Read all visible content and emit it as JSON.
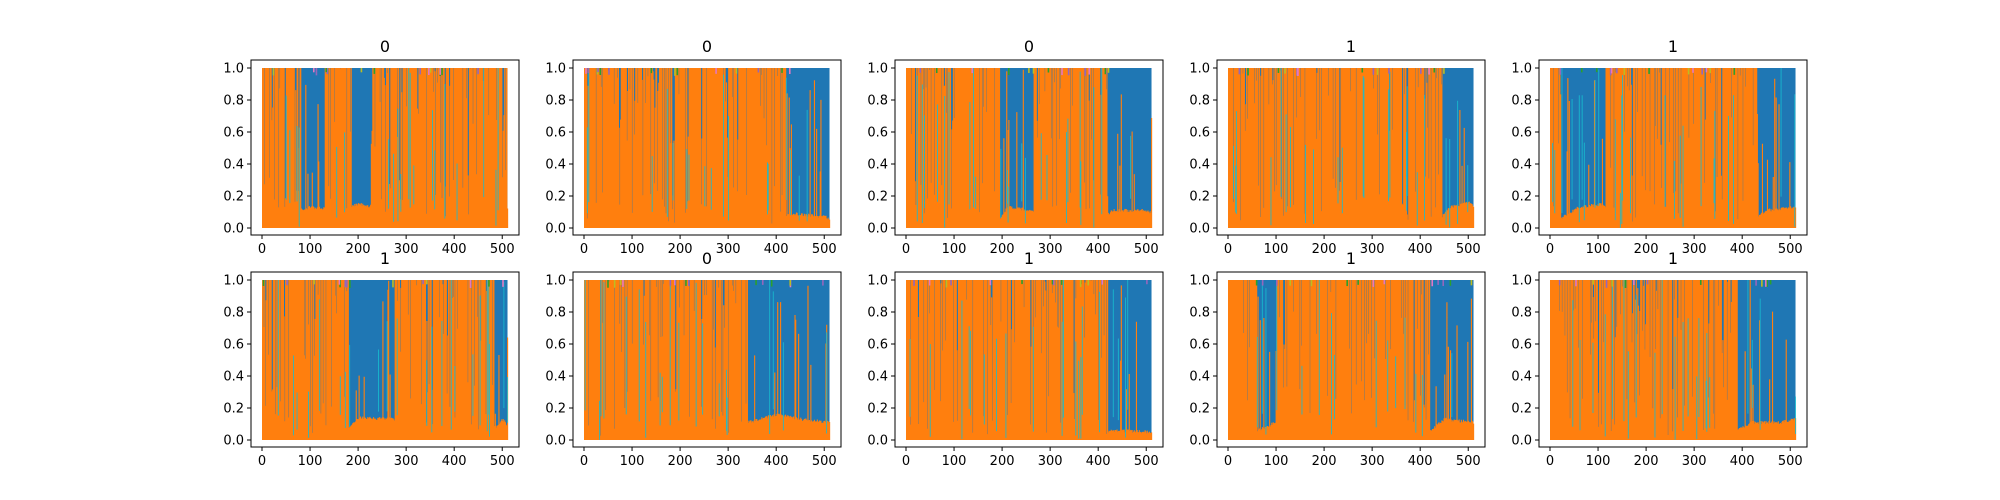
{
  "figure": {
    "rows": 2,
    "cols": 5
  },
  "colors": {
    "blue": "#1f77b4",
    "orange": "#ff7f0e",
    "cyan": "#17becf",
    "green": "#2ca02c",
    "purple": "#9467bd",
    "pink": "#e377c2",
    "olive": "#bcbd22"
  },
  "chart_data": [
    {
      "type": "area",
      "title": "0",
      "xlim": [
        0,
        512
      ],
      "ylim": [
        0,
        1
      ],
      "xticks": [
        0,
        100,
        200,
        300,
        400,
        500
      ],
      "yticks": [
        "0.0",
        "0.2",
        "0.4",
        "0.6",
        "0.8",
        "1.0"
      ],
      "grid": false,
      "legend": "none",
      "blue_regions": [
        [
          80,
          130
        ],
        [
          185,
          225
        ]
      ],
      "orange_baseline": [
        [
          0,
          0.03
        ],
        [
          100,
          0.12
        ],
        [
          160,
          0.1
        ],
        [
          200,
          0.14
        ],
        [
          240,
          0.12
        ],
        [
          300,
          0.02
        ],
        [
          450,
          0.04
        ],
        [
          500,
          0.12
        ],
        [
          510,
          0.1
        ]
      ]
    },
    {
      "type": "area",
      "title": "0",
      "xlim": [
        0,
        512
      ],
      "ylim": [
        0,
        1
      ],
      "xticks": [
        0,
        100,
        200,
        300,
        400,
        500
      ],
      "yticks": [
        "0.0",
        "0.2",
        "0.4",
        "0.6",
        "0.8",
        "1.0"
      ],
      "grid": false,
      "legend": "none",
      "blue_regions": [
        [
          420,
          510
        ]
      ],
      "orange_baseline": [
        [
          0,
          0.02
        ],
        [
          200,
          0.02
        ],
        [
          400,
          0.02
        ],
        [
          430,
          0.08
        ],
        [
          500,
          0.06
        ],
        [
          510,
          0.05
        ]
      ]
    },
    {
      "type": "area",
      "title": "0",
      "xlim": [
        0,
        512
      ],
      "ylim": [
        0,
        1
      ],
      "xticks": [
        0,
        100,
        200,
        300,
        400,
        500
      ],
      "yticks": [
        "0.0",
        "0.2",
        "0.4",
        "0.6",
        "0.8",
        "1.0"
      ],
      "grid": false,
      "legend": "none",
      "blue_regions": [
        [
          195,
          265
        ],
        [
          420,
          510
        ]
      ],
      "orange_baseline": [
        [
          0,
          0.02
        ],
        [
          190,
          0.03
        ],
        [
          210,
          0.12
        ],
        [
          260,
          0.1
        ],
        [
          400,
          0.03
        ],
        [
          430,
          0.1
        ],
        [
          500,
          0.1
        ],
        [
          510,
          0.08
        ]
      ]
    },
    {
      "type": "area",
      "title": "1",
      "xlim": [
        0,
        512
      ],
      "ylim": [
        0,
        1
      ],
      "xticks": [
        0,
        100,
        200,
        300,
        400,
        500
      ],
      "yticks": [
        "0.0",
        "0.2",
        "0.4",
        "0.6",
        "0.8",
        "1.0"
      ],
      "grid": false,
      "legend": "none",
      "blue_regions": [
        [
          445,
          510
        ]
      ],
      "orange_baseline": [
        [
          0,
          0.02
        ],
        [
          200,
          0.03
        ],
        [
          440,
          0.04
        ],
        [
          460,
          0.12
        ],
        [
          500,
          0.15
        ],
        [
          510,
          0.12
        ]
      ]
    },
    {
      "type": "area",
      "title": "1",
      "xlim": [
        0,
        512
      ],
      "ylim": [
        0,
        1
      ],
      "xticks": [
        0,
        100,
        200,
        300,
        400,
        500
      ],
      "yticks": [
        "0.0",
        "0.2",
        "0.4",
        "0.6",
        "0.8",
        "1.0"
      ],
      "grid": false,
      "legend": "none",
      "blue_regions": [
        [
          20,
          115
        ],
        [
          430,
          510
        ]
      ],
      "orange_baseline": [
        [
          0,
          0.02
        ],
        [
          20,
          0.05
        ],
        [
          60,
          0.12
        ],
        [
          110,
          0.14
        ],
        [
          150,
          0.04
        ],
        [
          420,
          0.03
        ],
        [
          450,
          0.1
        ],
        [
          510,
          0.12
        ]
      ]
    },
    {
      "type": "area",
      "title": "1",
      "xlim": [
        0,
        512
      ],
      "ylim": [
        0,
        1
      ],
      "xticks": [
        0,
        100,
        200,
        300,
        400,
        500
      ],
      "yticks": [
        "0.0",
        "0.2",
        "0.4",
        "0.6",
        "0.8",
        "1.0"
      ],
      "grid": false,
      "legend": "none",
      "blue_regions": [
        [
          180,
          275
        ],
        [
          485,
          510
        ]
      ],
      "orange_baseline": [
        [
          0,
          0.03
        ],
        [
          170,
          0.04
        ],
        [
          200,
          0.13
        ],
        [
          280,
          0.12
        ],
        [
          300,
          0.1
        ],
        [
          480,
          0.05
        ],
        [
          500,
          0.12
        ],
        [
          510,
          0.08
        ]
      ]
    },
    {
      "type": "area",
      "title": "0",
      "xlim": [
        0,
        512
      ],
      "ylim": [
        0,
        1
      ],
      "xticks": [
        0,
        100,
        200,
        300,
        400,
        500
      ],
      "yticks": [
        "0.0",
        "0.2",
        "0.4",
        "0.6",
        "0.8",
        "1.0"
      ],
      "grid": false,
      "legend": "none",
      "blue_regions": [
        [
          340,
          510
        ]
      ],
      "orange_baseline": [
        [
          0,
          0.02
        ],
        [
          300,
          0.02
        ],
        [
          340,
          0.1
        ],
        [
          400,
          0.15
        ],
        [
          450,
          0.12
        ],
        [
          510,
          0.1
        ]
      ]
    },
    {
      "type": "area",
      "title": "1",
      "xlim": [
        0,
        512
      ],
      "ylim": [
        0,
        1
      ],
      "xticks": [
        0,
        100,
        200,
        300,
        400,
        500
      ],
      "yticks": [
        "0.0",
        "0.2",
        "0.4",
        "0.6",
        "0.8",
        "1.0"
      ],
      "grid": false,
      "legend": "none",
      "blue_regions": [
        [
          420,
          510
        ]
      ],
      "orange_baseline": [
        [
          0,
          0.02
        ],
        [
          300,
          0.03
        ],
        [
          410,
          0.03
        ],
        [
          430,
          0.05
        ],
        [
          510,
          0.04
        ]
      ]
    },
    {
      "type": "area",
      "title": "1",
      "xlim": [
        0,
        512
      ],
      "ylim": [
        0,
        1
      ],
      "xticks": [
        0,
        100,
        200,
        300,
        400,
        500
      ],
      "yticks": [
        "0.0",
        "0.2",
        "0.4",
        "0.6",
        "0.8",
        "1.0"
      ],
      "grid": false,
      "legend": "none",
      "blue_regions": [
        [
          60,
          100
        ],
        [
          420,
          510
        ]
      ],
      "orange_baseline": [
        [
          0,
          0.02
        ],
        [
          60,
          0.05
        ],
        [
          100,
          0.1
        ],
        [
          200,
          0.12
        ],
        [
          300,
          0.1
        ],
        [
          420,
          0.05
        ],
        [
          450,
          0.12
        ],
        [
          510,
          0.1
        ]
      ]
    },
    {
      "type": "area",
      "title": "1",
      "xlim": [
        0,
        512
      ],
      "ylim": [
        0,
        1
      ],
      "xticks": [
        0,
        100,
        200,
        300,
        400,
        500
      ],
      "yticks": [
        "0.0",
        "0.2",
        "0.4",
        "0.6",
        "0.8",
        "1.0"
      ],
      "grid": false,
      "legend": "none",
      "blue_regions": [
        [
          390,
          510
        ]
      ],
      "orange_baseline": [
        [
          0,
          0.02
        ],
        [
          300,
          0.03
        ],
        [
          380,
          0.04
        ],
        [
          420,
          0.1
        ],
        [
          480,
          0.1
        ],
        [
          510,
          0.12
        ]
      ]
    }
  ]
}
